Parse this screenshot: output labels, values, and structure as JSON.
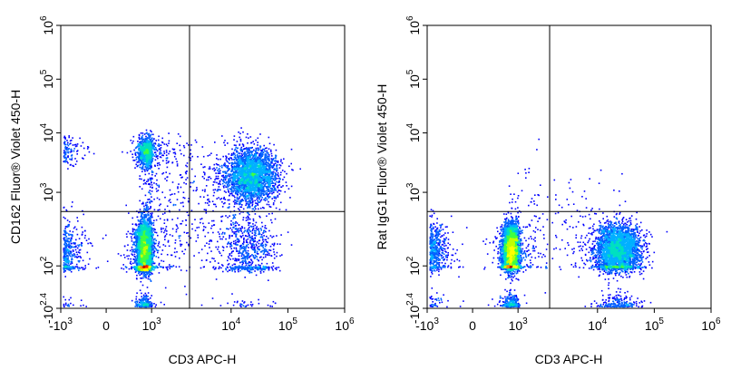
{
  "chart_data": [
    {
      "type": "scatter",
      "style": "density-pseudocolor",
      "xlabel": "CD3 APC-H",
      "ylabel": "CD162 Fluor® Violet 450-H",
      "x_scale": "biexponential",
      "y_scale": "biexponential",
      "xlim": [
        -1000,
        1000000
      ],
      "ylim": [
        -250,
        1000000
      ],
      "x_ticks": [
        {
          "base": "-10",
          "exp": "3",
          "value": -1000
        },
        {
          "base": "0",
          "exp": "",
          "value": 0
        },
        {
          "base": "10",
          "exp": "3",
          "value": 1000
        },
        {
          "base": "10",
          "exp": "4",
          "value": 10000
        },
        {
          "base": "10",
          "exp": "5",
          "value": 100000
        },
        {
          "base": "10",
          "exp": "6",
          "value": 1000000
        }
      ],
      "y_ticks": [
        {
          "base": "-10",
          "exp": "2.4",
          "value": -250
        },
        {
          "base": "10",
          "exp": "2",
          "value": 100
        },
        {
          "base": "10",
          "exp": "3",
          "value": 1000
        },
        {
          "base": "10",
          "exp": "4",
          "value": 10000
        },
        {
          "base": "10",
          "exp": "5",
          "value": 100000
        },
        {
          "base": "10",
          "exp": "6",
          "value": 1000000
        }
      ],
      "quadrant_gate": {
        "x": 3000,
        "y": 550
      },
      "populations": [
        {
          "x": 300,
          "y": 150,
          "spread_x": 0.55,
          "spread_y": 0.5,
          "weight": 0.45
        },
        {
          "x": 22000,
          "y": 2000,
          "spread_x": 0.45,
          "spread_y": 0.45,
          "weight": 0.3
        },
        {
          "x": 400,
          "y": 5000,
          "spread_x": 0.6,
          "spread_y": 0.25,
          "weight": 0.12
        },
        {
          "x": 20000,
          "y": 150,
          "spread_x": 0.5,
          "spread_y": 0.6,
          "weight": 0.08
        },
        {
          "x": 2500,
          "y": 800,
          "spread_x": 1.0,
          "spread_y": 1.0,
          "weight": 0.05
        }
      ]
    },
    {
      "type": "scatter",
      "style": "density-pseudocolor",
      "xlabel": "CD3 APC-H",
      "ylabel": "Rat IgG1 Fluor® Violet 450-H",
      "x_scale": "biexponential",
      "y_scale": "biexponential",
      "xlim": [
        -1000,
        1000000
      ],
      "ylim": [
        -250,
        1000000
      ],
      "x_ticks": [
        {
          "base": "-10",
          "exp": "3",
          "value": -1000
        },
        {
          "base": "0",
          "exp": "",
          "value": 0
        },
        {
          "base": "10",
          "exp": "3",
          "value": 1000
        },
        {
          "base": "10",
          "exp": "4",
          "value": 10000
        },
        {
          "base": "10",
          "exp": "5",
          "value": 100000
        },
        {
          "base": "10",
          "exp": "6",
          "value": 1000000
        }
      ],
      "y_ticks": [
        {
          "base": "-10",
          "exp": "2.4",
          "value": -250
        },
        {
          "base": "10",
          "exp": "2",
          "value": 100
        },
        {
          "base": "10",
          "exp": "3",
          "value": 1000
        },
        {
          "base": "10",
          "exp": "4",
          "value": 10000
        },
        {
          "base": "10",
          "exp": "5",
          "value": 100000
        },
        {
          "base": "10",
          "exp": "6",
          "value": 1000000
        }
      ],
      "quadrant_gate": {
        "x": 2500,
        "y": 550
      },
      "populations": [
        {
          "x": 300,
          "y": 160,
          "spread_x": 0.55,
          "spread_y": 0.35,
          "weight": 0.58
        },
        {
          "x": 22000,
          "y": 160,
          "spread_x": 0.4,
          "spread_y": 0.35,
          "weight": 0.4
        },
        {
          "x": 2000,
          "y": 400,
          "spread_x": 1.0,
          "spread_y": 0.8,
          "weight": 0.02
        }
      ]
    }
  ]
}
